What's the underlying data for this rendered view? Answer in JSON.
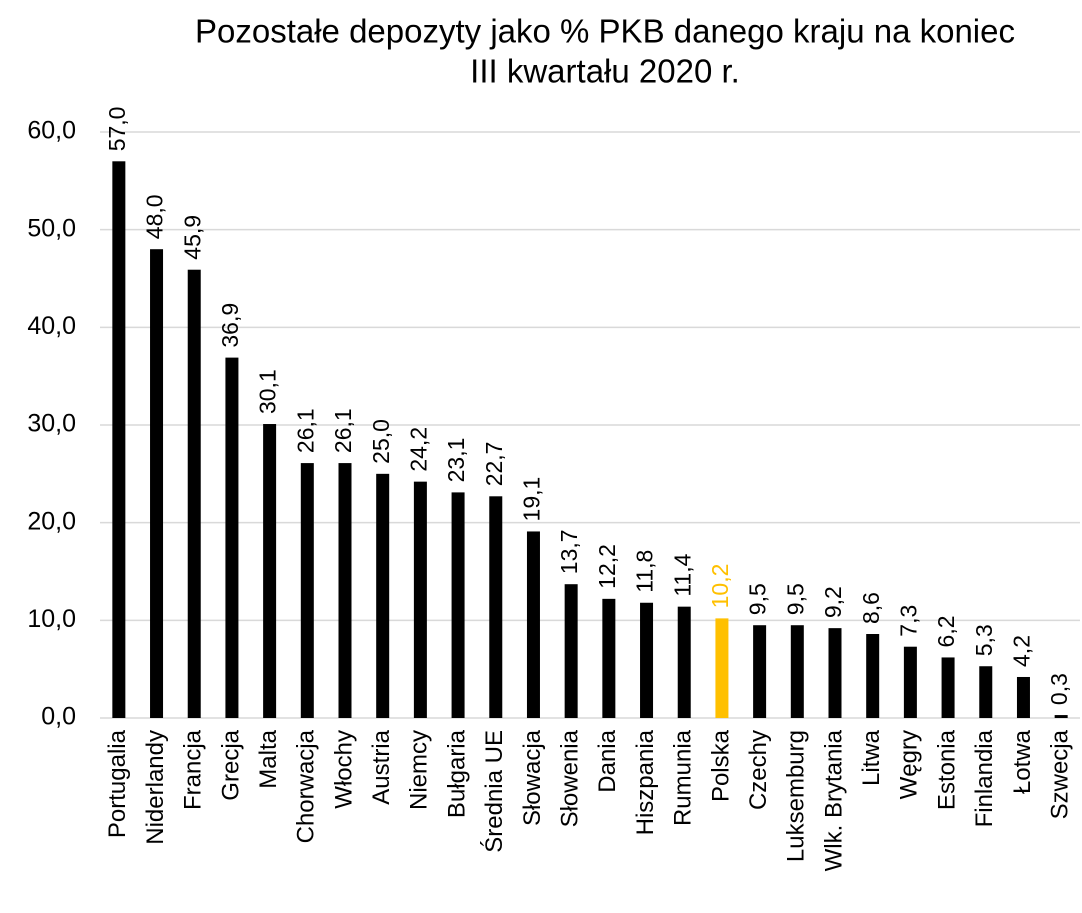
{
  "chart_data": {
    "type": "bar",
    "title": [
      "Pozostałe depozyty jako % PKB danego kraju na koniec",
      "III kwartału 2020 r."
    ],
    "categories": [
      "Portugalia",
      "Niderlandy",
      "Francja",
      "Grecja",
      "Malta",
      "Chorwacja",
      "Włochy",
      "Austria",
      "Niemcy",
      "Bułgaria",
      "Średnia UE",
      "Słowacja",
      "Słowenia",
      "Dania",
      "Hiszpania",
      "Rumunia",
      "Polska",
      "Czechy",
      "Luksemburg",
      "Wlk. Brytania",
      "Litwa",
      "Węgry",
      "Estonia",
      "Finlandia",
      "Łotwa",
      "Szwecja"
    ],
    "values": [
      57.0,
      48.0,
      45.9,
      36.9,
      30.1,
      26.1,
      26.1,
      25.0,
      24.2,
      23.1,
      22.7,
      19.1,
      13.7,
      12.2,
      11.8,
      11.4,
      10.2,
      9.5,
      9.5,
      9.2,
      8.6,
      7.3,
      6.2,
      5.3,
      4.2,
      0.3
    ],
    "value_labels": [
      "57,0",
      "48,0",
      "45,9",
      "36,9",
      "30,1",
      "26,1",
      "26,1",
      "25,0",
      "24,2",
      "23,1",
      "22,7",
      "19,1",
      "13,7",
      "12,2",
      "11,8",
      "11,4",
      "10,2",
      "9,5",
      "9,5",
      "9,2",
      "8,6",
      "7,3",
      "6,2",
      "5,3",
      "4,2",
      "0,3"
    ],
    "colors": [
      "#000000",
      "#000000",
      "#000000",
      "#000000",
      "#000000",
      "#000000",
      "#000000",
      "#000000",
      "#000000",
      "#000000",
      "#000000",
      "#000000",
      "#000000",
      "#000000",
      "#000000",
      "#000000",
      "#FFC000",
      "#000000",
      "#000000",
      "#000000",
      "#000000",
      "#000000",
      "#000000",
      "#000000",
      "#000000",
      "#000000"
    ],
    "ylim": [
      0,
      60
    ],
    "yticks": [
      {
        "value": 0,
        "label": "0,0"
      },
      {
        "value": 10,
        "label": "10,0"
      },
      {
        "value": 20,
        "label": "20,0"
      },
      {
        "value": 30,
        "label": "30,0"
      },
      {
        "value": 40,
        "label": "40,0"
      },
      {
        "value": 50,
        "label": "50,0"
      },
      {
        "value": 60,
        "label": "60,0"
      }
    ],
    "grid": true
  }
}
